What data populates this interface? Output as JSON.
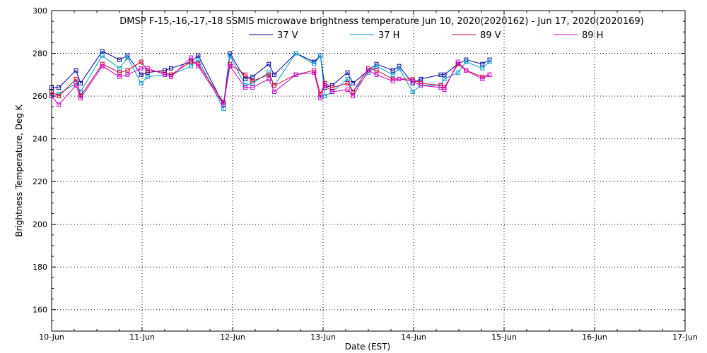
{
  "chart_data": {
    "type": "line",
    "title": "DMSP F-15,-16,-17,-18 SSMIS microwave brightness temperature Jun 10, 2020(2020162) - Jun 17, 2020(2020169)",
    "xlabel": "Date (EST)",
    "ylabel": "Brightness Temperature, Deg K",
    "xlim": [
      0,
      7
    ],
    "ylim": [
      150,
      300
    ],
    "x_tick_values": [
      0,
      1,
      2,
      3,
      4,
      5,
      6,
      7
    ],
    "x_tick_labels": [
      "10-Jun",
      "11-Jun",
      "12-Jun",
      "13-Jun",
      "14-Jun",
      "15-Jun",
      "16-Jun",
      "17-Jun"
    ],
    "y_ticks": [
      160,
      180,
      200,
      220,
      240,
      260,
      280,
      300
    ],
    "grid": true,
    "legend_position": "top",
    "series": [
      {
        "name": "37 V",
        "color": "#000099",
        "x": [
          0.0,
          0.08,
          0.27,
          0.32,
          0.56,
          0.75,
          0.84,
          0.99,
          1.06,
          1.25,
          1.32,
          1.54,
          1.62,
          1.9,
          1.97,
          2.14,
          2.22,
          2.4,
          2.46,
          2.7,
          2.9,
          2.97,
          3.02,
          3.1,
          3.27,
          3.33,
          3.5,
          3.59,
          3.77,
          3.84,
          3.99,
          4.08,
          4.3,
          4.34,
          4.49,
          4.58,
          4.76,
          4.84
        ],
        "y": [
          264,
          264,
          272,
          266,
          281,
          277,
          279,
          270,
          271,
          272,
          273,
          276,
          279,
          256,
          280,
          268,
          269,
          275,
          270,
          280,
          276,
          279,
          264,
          265,
          271,
          266,
          272,
          275,
          272,
          274,
          266,
          268,
          270,
          270,
          275,
          277,
          275,
          277
        ]
      },
      {
        "name": "37 H",
        "color": "#0099cc",
        "x": [
          0.0,
          0.08,
          0.27,
          0.32,
          0.56,
          0.75,
          0.84,
          0.99,
          1.06,
          1.25,
          1.32,
          1.54,
          1.62,
          1.9,
          1.97,
          2.14,
          2.22,
          2.4,
          2.46,
          2.7,
          2.9,
          2.97,
          3.02,
          3.1,
          3.27,
          3.33,
          3.5,
          3.59,
          3.77,
          3.84,
          3.99,
          4.08,
          4.3,
          4.34,
          4.49,
          4.58,
          4.76,
          4.84
        ],
        "y": [
          261,
          261,
          266,
          262,
          279,
          273,
          278,
          266,
          269,
          270,
          270,
          274,
          277,
          254,
          279,
          265,
          266,
          271,
          265,
          280,
          275,
          279,
          260,
          262,
          268,
          262,
          271,
          274,
          270,
          273,
          262,
          265,
          265,
          268,
          271,
          276,
          273,
          276
        ]
      },
      {
        "name": "89 V",
        "color": "#cc0033",
        "x": [
          0.0,
          0.08,
          0.27,
          0.32,
          0.56,
          0.75,
          0.84,
          0.99,
          1.06,
          1.25,
          1.32,
          1.54,
          1.62,
          1.9,
          1.97,
          2.14,
          2.22,
          2.4,
          2.46,
          2.7,
          2.9,
          2.97,
          3.02,
          3.1,
          3.27,
          3.33,
          3.5,
          3.59,
          3.77,
          3.84,
          3.99,
          4.08,
          4.3,
          4.34,
          4.49,
          4.58,
          4.76,
          4.84
        ],
        "y": [
          262,
          260,
          268,
          260,
          275,
          271,
          272,
          276,
          272,
          271,
          270,
          276,
          275,
          257,
          275,
          270,
          267,
          270,
          265,
          270,
          272,
          261,
          266,
          264,
          266,
          262,
          273,
          272,
          268,
          268,
          268,
          266,
          265,
          264,
          275,
          272,
          269,
          270
        ]
      },
      {
        "name": "89 H",
        "color": "#cc00cc",
        "x": [
          0.0,
          0.08,
          0.27,
          0.32,
          0.56,
          0.75,
          0.84,
          0.99,
          1.06,
          1.25,
          1.32,
          1.54,
          1.62,
          1.9,
          1.97,
          2.14,
          2.22,
          2.4,
          2.46,
          2.7,
          2.9,
          2.97,
          3.02,
          3.1,
          3.27,
          3.33,
          3.5,
          3.59,
          3.77,
          3.84,
          3.99,
          4.08,
          4.3,
          4.34,
          4.49,
          4.58,
          4.76,
          4.84
        ],
        "y": [
          260,
          256,
          265,
          259,
          274,
          269,
          270,
          273,
          273,
          270,
          269,
          278,
          274,
          256,
          274,
          264,
          264,
          268,
          262,
          270,
          271,
          259,
          265,
          262,
          263,
          260,
          272,
          270,
          267,
          268,
          267,
          265,
          264,
          263,
          276,
          272,
          268,
          270
        ]
      }
    ]
  }
}
